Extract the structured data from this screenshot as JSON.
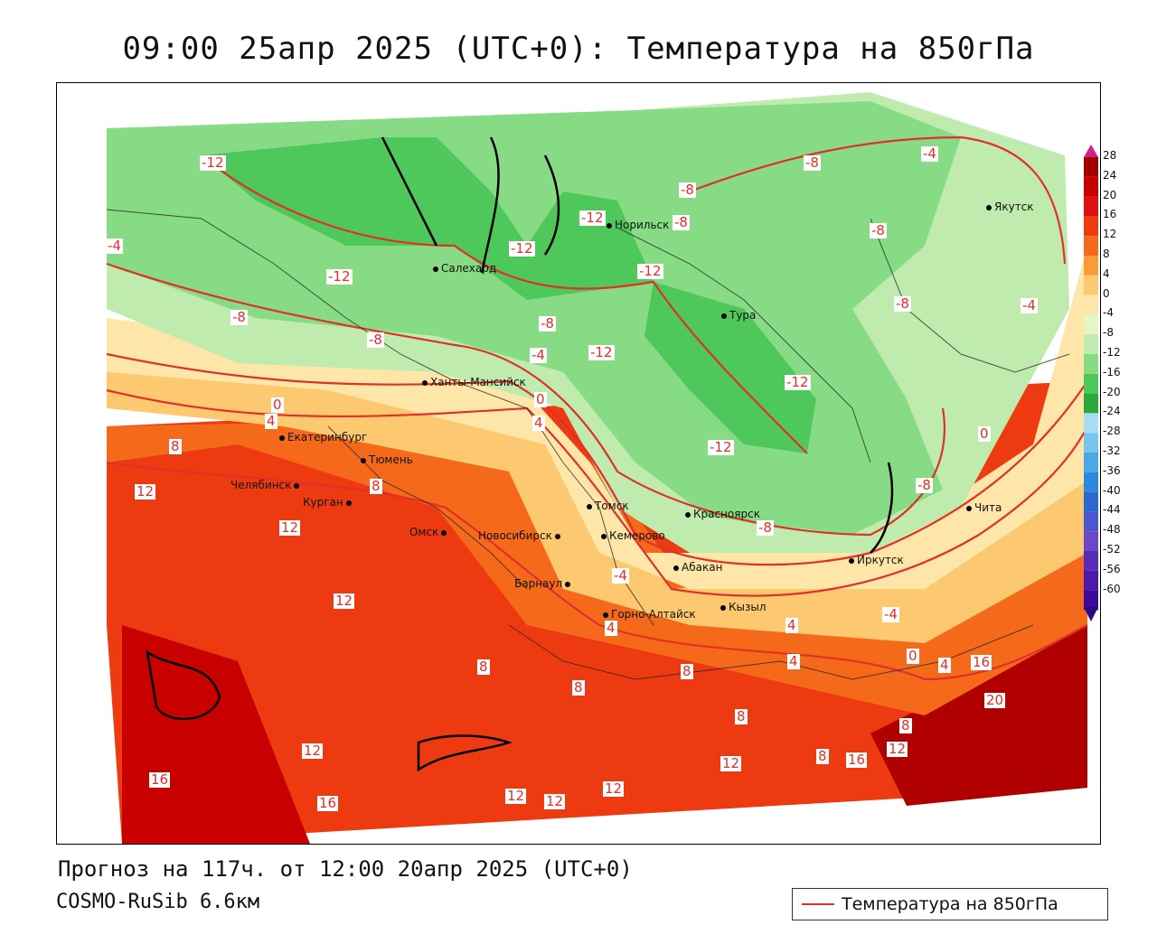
{
  "title": "09:00 25апр 2025 (UTC+0): Температура на 850гПа",
  "footer": {
    "forecast": "Прогноз на 117ч. от 12:00 20апр 2025 (UTC+0)",
    "model": "COSMO-RuSib 6.6км"
  },
  "legend": {
    "label": "Температура на 850гПа",
    "color": "#e0302a"
  },
  "colorbar": {
    "labels": [
      "28",
      "24",
      "20",
      "16",
      "12",
      "8",
      "4",
      "0",
      "-4",
      "-8",
      "-12",
      "-16",
      "-20",
      "-24",
      "-28",
      "-32",
      "-36",
      "-40",
      "-44",
      "-48",
      "-52",
      "-56",
      "-60"
    ],
    "colors": [
      "#a50000",
      "#c80000",
      "#e01010",
      "#ee3a10",
      "#f56a1a",
      "#fa9a3a",
      "#fcc870",
      "#fde6a8",
      "#e6f5c4",
      "#bfecae",
      "#86db84",
      "#4ec85a",
      "#2aa83c",
      "#a8dcf0",
      "#78c4ec",
      "#4aa8e6",
      "#2a88de",
      "#2a6ad0",
      "#4a58d0",
      "#6a48c8",
      "#5a2ab8",
      "#4a1aa8",
      "#3a0a98"
    ]
  },
  "cities": [
    {
      "name": "Норильск"
    },
    {
      "name": "Салехард"
    },
    {
      "name": "Тура"
    },
    {
      "name": "Якутск"
    },
    {
      "name": "Ханты-Мансийск"
    },
    {
      "name": "Екатеринбург"
    },
    {
      "name": "Тюмень"
    },
    {
      "name": "Челябинск"
    },
    {
      "name": "Курган"
    },
    {
      "name": "Омск"
    },
    {
      "name": "Новосибирск"
    },
    {
      "name": "Томск"
    },
    {
      "name": "Кемерово"
    },
    {
      "name": "Красноярск"
    },
    {
      "name": "Барнаул"
    },
    {
      "name": "Абакан"
    },
    {
      "name": "Горно-Алтайск"
    },
    {
      "name": "Кызыл"
    },
    {
      "name": "Иркутск"
    },
    {
      "name": "Чита"
    }
  ],
  "contour_labels": [
    "-12",
    "-12",
    "-12",
    "-12",
    "-12",
    "-12",
    "-12",
    "-12",
    "-8",
    "-8",
    "-8",
    "-8",
    "-8",
    "-8",
    "-8",
    "-8",
    "-8",
    "-8",
    "-4",
    "-4",
    "-4",
    "-4",
    "-4",
    "-4",
    "0",
    "0",
    "0",
    "0",
    "4",
    "4",
    "4",
    "4",
    "4",
    "4",
    "8",
    "8",
    "8",
    "8",
    "8",
    "8",
    "8",
    "8",
    "12",
    "12",
    "12",
    "12",
    "12",
    "12",
    "12",
    "12",
    "12",
    "16",
    "16",
    "16",
    "16",
    "20"
  ]
}
